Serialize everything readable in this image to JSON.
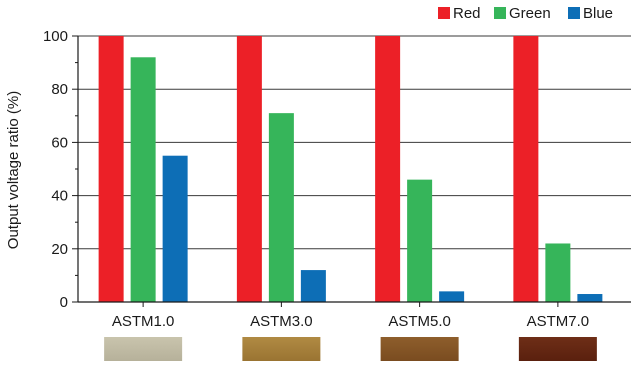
{
  "chart_data": {
    "type": "bar",
    "title": "",
    "xlabel": "",
    "ylabel": "Output voltage ratio (%)",
    "ylim": [
      0,
      100
    ],
    "yticks": [
      "0",
      "20",
      "40",
      "60",
      "80",
      "100"
    ],
    "grid": true,
    "legend_position": "top-right",
    "categories": [
      "ASTM1.0",
      "ASTM3.0",
      "ASTM5.0",
      "ASTM7.0"
    ],
    "series": [
      {
        "name": "Red",
        "color": "#ec2027",
        "values": [
          100,
          100,
          100,
          100
        ]
      },
      {
        "name": "Green",
        "color": "#36b55a",
        "values": [
          92,
          71,
          46,
          22
        ]
      },
      {
        "name": "Blue",
        "color": "#0d6eb6",
        "values": [
          55,
          12,
          4,
          3
        ]
      }
    ],
    "swatches": [
      {
        "category": "ASTM1.0",
        "colors": [
          "#c9c4ad",
          "#b6b19a"
        ]
      },
      {
        "category": "ASTM3.0",
        "colors": [
          "#b08a43",
          "#9a7432"
        ]
      },
      {
        "category": "ASTM5.0",
        "colors": [
          "#8e5e2c",
          "#7a4c20"
        ]
      },
      {
        "category": "ASTM7.0",
        "colors": [
          "#6e2e17",
          "#5a200e"
        ]
      }
    ]
  }
}
